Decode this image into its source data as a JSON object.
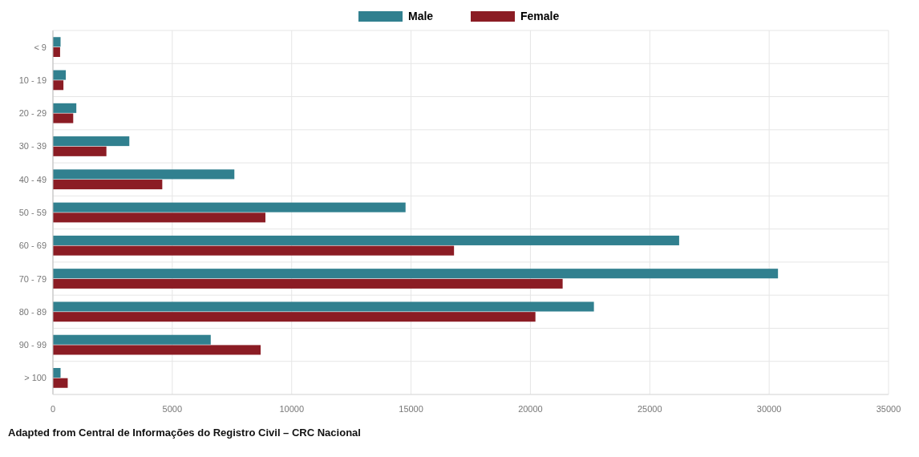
{
  "chart_data": {
    "type": "bar",
    "orientation": "horizontal",
    "categories": [
      "< 9",
      "10 - 19",
      "20 - 29",
      "30 - 39",
      "40 - 49",
      "50 - 59",
      "60 - 69",
      "70 - 79",
      "80 - 89",
      "90 - 99",
      "> 100"
    ],
    "series": [
      {
        "name": "Male",
        "color": "#31808f",
        "values": [
          320,
          540,
          980,
          3200,
          7600,
          14770,
          26230,
          30370,
          22660,
          6610,
          320
        ]
      },
      {
        "name": "Female",
        "color": "#8b1c24",
        "values": [
          300,
          440,
          850,
          2240,
          4580,
          8900,
          16800,
          21350,
          20210,
          8700,
          620
        ]
      }
    ],
    "xlim": [
      0,
      35000
    ],
    "xticks": [
      0,
      5000,
      10000,
      15000,
      20000,
      25000,
      30000,
      35000
    ],
    "grid": true,
    "legend": "top",
    "annotations": [
      "Adapted from Central de Informações do Registro Civil – CRC Nacional"
    ]
  }
}
